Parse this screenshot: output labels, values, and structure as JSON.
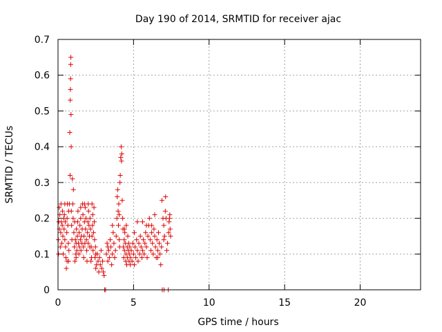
{
  "chart_data": {
    "type": "scatter",
    "title": "Day 190 of 2014, SRMTID for receiver ajac",
    "xlabel": "GPS time / hours",
    "ylabel": "SRMTID / TECUs",
    "xlim": [
      0,
      24
    ],
    "ylim": [
      0,
      0.7
    ],
    "xticks": [
      0,
      5,
      10,
      15,
      20
    ],
    "xtick_labels": [
      "0",
      "5",
      "10",
      "15",
      "20"
    ],
    "yticks": [
      0,
      0.1,
      0.2,
      0.3,
      0.4,
      0.5,
      0.6,
      0.7
    ],
    "ytick_labels": [
      "0",
      "0.1",
      "0.2",
      "0.3",
      "0.4",
      "0.5",
      "0.6",
      "0.7"
    ],
    "grid": true,
    "marker": "+",
    "series": [
      {
        "name": "SRMTID",
        "color": "#dd0000",
        "points": [
          [
            0.02,
            0.14
          ],
          [
            0.05,
            0.19
          ],
          [
            0.08,
            0.23
          ],
          [
            0.1,
            0.17
          ],
          [
            0.12,
            0.21
          ],
          [
            0.15,
            0.12
          ],
          [
            0.18,
            0.16
          ],
          [
            0.2,
            0.24
          ],
          [
            0.22,
            0.19
          ],
          [
            0.25,
            0.13
          ],
          [
            0.28,
            0.18
          ],
          [
            0.3,
            0.22
          ],
          [
            0.32,
            0.15
          ],
          [
            0.35,
            0.1
          ],
          [
            0.38,
            0.2
          ],
          [
            0.4,
            0.17
          ],
          [
            0.42,
            0.21
          ],
          [
            0.45,
            0.14
          ],
          [
            0.48,
            0.19
          ],
          [
            0.5,
            0.12
          ],
          [
            0.52,
            0.09
          ],
          [
            0.55,
            0.06
          ],
          [
            0.58,
            0.16
          ],
          [
            0.6,
            0.2
          ],
          [
            0.62,
            0.24
          ],
          [
            0.65,
            0.18
          ],
          [
            0.68,
            0.13
          ],
          [
            0.7,
            0.08
          ],
          [
            0.72,
            0.11
          ],
          [
            0.75,
            0.24
          ],
          [
            0.78,
            0.44
          ],
          [
            0.8,
            0.32
          ],
          [
            0.81,
            0.53
          ],
          [
            0.82,
            0.56
          ],
          [
            0.83,
            0.59
          ],
          [
            0.84,
            0.63
          ],
          [
            0.85,
            0.65
          ],
          [
            0.86,
            0.49
          ],
          [
            0.87,
            0.4
          ],
          [
            0.88,
            0.22
          ],
          [
            0.9,
            0.18
          ],
          [
            0.92,
            0.14
          ],
          [
            0.95,
            0.31
          ],
          [
            0.98,
            0.24
          ],
          [
            1.0,
            0.2
          ],
          [
            1.02,
            0.28
          ],
          [
            1.05,
            0.16
          ],
          [
            1.08,
            0.12
          ],
          [
            1.1,
            0.19
          ],
          [
            1.12,
            0.08
          ],
          [
            1.15,
            0.14
          ],
          [
            1.18,
            0.1
          ],
          [
            1.2,
            0.13
          ],
          [
            1.22,
            0.17
          ],
          [
            1.25,
            0.11
          ],
          [
            1.28,
            0.15
          ],
          [
            1.3,
            0.19
          ],
          [
            1.32,
            0.22
          ],
          [
            1.35,
            0.13
          ],
          [
            1.38,
            0.1
          ],
          [
            1.4,
            0.16
          ],
          [
            1.42,
            0.12
          ],
          [
            1.45,
            0.18
          ],
          [
            1.48,
            0.14
          ],
          [
            1.5,
            0.2
          ],
          [
            1.52,
            0.11
          ],
          [
            1.55,
            0.15
          ],
          [
            1.58,
            0.13
          ],
          [
            1.6,
            0.17
          ],
          [
            1.62,
            0.24
          ],
          [
            1.65,
            0.21
          ],
          [
            1.68,
            0.12
          ],
          [
            1.7,
            0.09
          ],
          [
            1.72,
            0.15
          ],
          [
            1.75,
            0.19
          ],
          [
            1.78,
            0.13
          ],
          [
            1.8,
            0.23
          ],
          [
            1.82,
            0.17
          ],
          [
            1.85,
            0.2
          ],
          [
            1.88,
            0.14
          ],
          [
            1.9,
            0.11
          ],
          [
            1.92,
            0.08
          ],
          [
            1.95,
            0.16
          ],
          [
            1.98,
            0.19
          ],
          [
            2.0,
            0.13
          ],
          [
            2.02,
            0.22
          ],
          [
            2.05,
            0.18
          ],
          [
            2.08,
            0.15
          ],
          [
            2.1,
            0.12
          ],
          [
            2.12,
            0.2
          ],
          [
            2.15,
            0.17
          ],
          [
            2.18,
            0.08
          ],
          [
            2.2,
            0.12
          ],
          [
            2.22,
            0.09
          ],
          [
            2.25,
            0.15
          ],
          [
            2.28,
            0.18
          ],
          [
            2.3,
            0.21
          ],
          [
            2.32,
            0.11
          ],
          [
            2.35,
            0.16
          ],
          [
            2.38,
            0.23
          ],
          [
            2.4,
            0.19
          ],
          [
            2.42,
            0.14
          ],
          [
            2.45,
            0.09
          ],
          [
            2.48,
            0.12
          ],
          [
            2.5,
            0.06
          ],
          [
            2.55,
            0.07
          ],
          [
            2.6,
            0.1
          ],
          [
            2.65,
            0.08
          ],
          [
            2.7,
            0.05
          ],
          [
            2.75,
            0.09
          ],
          [
            2.8,
            0.07
          ],
          [
            2.85,
            0.11
          ],
          [
            2.9,
            0.06
          ],
          [
            2.95,
            0.08
          ],
          [
            3.0,
            0.05
          ],
          [
            3.05,
            0.04
          ],
          [
            3.08,
            0.0
          ],
          [
            3.15,
            0.0
          ],
          [
            3.2,
            0.1
          ],
          [
            3.25,
            0.13
          ],
          [
            3.3,
            0.08
          ],
          [
            3.35,
            0.11
          ],
          [
            3.4,
            0.09
          ],
          [
            3.45,
            0.14
          ],
          [
            3.5,
            0.12
          ],
          [
            3.55,
            0.07
          ],
          [
            3.6,
            0.1
          ],
          [
            3.65,
            0.16
          ],
          [
            3.7,
            0.13
          ],
          [
            3.75,
            0.09
          ],
          [
            3.8,
            0.11
          ],
          [
            3.85,
            0.15
          ],
          [
            3.9,
            0.2
          ],
          [
            3.92,
            0.26
          ],
          [
            3.95,
            0.28
          ],
          [
            3.98,
            0.22
          ],
          [
            4.0,
            0.18
          ],
          [
            4.02,
            0.24
          ],
          [
            4.05,
            0.14
          ],
          [
            4.08,
            0.12
          ],
          [
            4.1,
            0.3
          ],
          [
            4.12,
            0.32
          ],
          [
            4.15,
            0.37
          ],
          [
            4.18,
            0.4
          ],
          [
            4.2,
            0.36
          ],
          [
            4.22,
            0.38
          ],
          [
            4.25,
            0.25
          ],
          [
            4.28,
            0.2
          ],
          [
            4.3,
            0.17
          ],
          [
            4.32,
            0.12
          ],
          [
            4.35,
            0.09
          ],
          [
            4.38,
            0.14
          ],
          [
            4.4,
            0.11
          ],
          [
            4.42,
            0.16
          ],
          [
            4.45,
            0.13
          ],
          [
            4.48,
            0.08
          ],
          [
            4.5,
            0.1
          ],
          [
            4.52,
            0.18
          ],
          [
            4.55,
            0.07
          ],
          [
            4.58,
            0.12
          ],
          [
            4.6,
            0.09
          ],
          [
            4.62,
            0.15
          ],
          [
            4.65,
            0.11
          ],
          [
            4.68,
            0.13
          ],
          [
            4.7,
            0.08
          ],
          [
            4.72,
            0.1
          ],
          [
            4.75,
            0.12
          ],
          [
            4.78,
            0.07
          ],
          [
            4.8,
            0.09
          ],
          [
            4.85,
            0.11
          ],
          [
            4.9,
            0.08
          ],
          [
            4.95,
            0.13
          ],
          [
            5.0,
            0.1
          ],
          [
            5.05,
            0.07
          ],
          [
            5.1,
            0.12
          ],
          [
            5.15,
            0.09
          ],
          [
            5.2,
            0.14
          ],
          [
            5.25,
            0.11
          ],
          [
            5.3,
            0.08
          ],
          [
            5.35,
            0.13
          ],
          [
            5.4,
            0.1
          ],
          [
            5.45,
            0.15
          ],
          [
            5.5,
            0.12
          ],
          [
            5.55,
            0.09
          ],
          [
            5.6,
            0.11
          ],
          [
            5.65,
            0.14
          ],
          [
            5.7,
            0.1
          ],
          [
            5.75,
            0.13
          ],
          [
            5.8,
            0.16
          ],
          [
            5.85,
            0.12
          ],
          [
            5.9,
            0.09
          ],
          [
            5.95,
            0.15
          ],
          [
            6.0,
            0.18
          ],
          [
            6.05,
            0.2
          ],
          [
            6.1,
            0.14
          ],
          [
            6.15,
            0.11
          ],
          [
            6.2,
            0.16
          ],
          [
            6.25,
            0.13
          ],
          [
            6.3,
            0.1
          ],
          [
            6.35,
            0.17
          ],
          [
            6.4,
            0.15
          ],
          [
            6.45,
            0.12
          ],
          [
            6.5,
            0.09
          ],
          [
            6.55,
            0.14
          ],
          [
            6.6,
            0.11
          ],
          [
            6.65,
            0.16
          ],
          [
            6.7,
            0.13
          ],
          [
            6.75,
            0.1
          ],
          [
            6.8,
            0.07
          ],
          [
            6.85,
            0.12
          ],
          [
            6.88,
            0.25
          ],
          [
            6.9,
            0.0
          ],
          [
            6.95,
            0.2
          ],
          [
            7.0,
            0.18
          ],
          [
            7.02,
            0.0
          ],
          [
            7.05,
            0.15
          ],
          [
            7.1,
            0.22
          ],
          [
            7.12,
            0.26
          ],
          [
            7.15,
            0.2
          ],
          [
            7.2,
            0.11
          ],
          [
            7.25,
            0.13
          ],
          [
            7.3,
            0.0
          ],
          [
            7.32,
            0.16
          ],
          [
            7.35,
            0.19
          ],
          [
            7.4,
            0.21
          ],
          [
            7.42,
            0.17
          ],
          [
            7.45,
            0.15
          ],
          [
            0.03,
            0.1
          ],
          [
            0.6,
            0.08
          ],
          [
            1.2,
            0.09
          ],
          [
            2.5,
            0.1
          ],
          [
            3.3,
            0.12
          ],
          [
            3.6,
            0.18
          ],
          [
            4.4,
            0.17
          ],
          [
            5.05,
            0.16
          ],
          [
            5.6,
            0.19
          ],
          [
            6.2,
            0.18
          ],
          [
            6.6,
            0.09
          ],
          [
            7.0,
            0.14
          ],
          [
            1.75,
            0.24
          ],
          [
            2.0,
            0.24
          ],
          [
            2.25,
            0.24
          ],
          [
            0.45,
            0.24
          ],
          [
            0.7,
            0.22
          ],
          [
            1.5,
            0.23
          ],
          [
            4.05,
            0.21
          ],
          [
            5.25,
            0.19
          ],
          [
            5.85,
            0.18
          ],
          [
            6.4,
            0.21
          ],
          [
            7.38,
            0.2
          ]
        ]
      }
    ]
  }
}
